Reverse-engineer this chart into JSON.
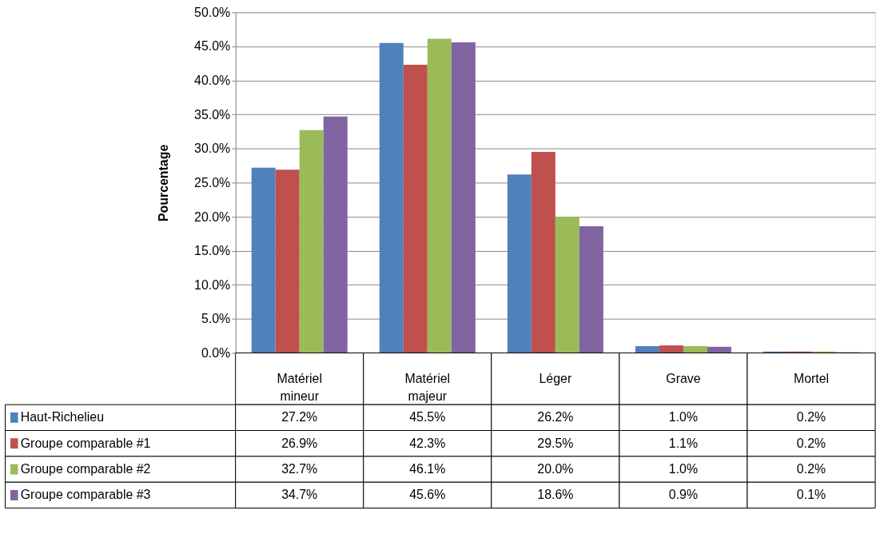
{
  "chart_data": {
    "type": "bar",
    "ylabel": "Pourcentage",
    "categories": [
      "Matériel mineur",
      "Matériel majeur",
      "Léger",
      "Grave",
      "Mortel"
    ],
    "series": [
      {
        "name": "Haut-Richelieu",
        "color": "#4f81bd",
        "values": [
          27.2,
          45.5,
          26.2,
          1.0,
          0.2
        ],
        "value_labels": [
          "27.2%",
          "45.5%",
          "26.2%",
          "1.0%",
          "0.2%"
        ]
      },
      {
        "name": "Groupe comparable #1",
        "color": "#c0504d",
        "values": [
          26.9,
          42.3,
          29.5,
          1.1,
          0.2
        ],
        "value_labels": [
          "26.9%",
          "42.3%",
          "29.5%",
          "1.1%",
          "0.2%"
        ]
      },
      {
        "name": "Groupe comparable #2",
        "color": "#9bbb59",
        "values": [
          32.7,
          46.1,
          20.0,
          1.0,
          0.2
        ],
        "value_labels": [
          "32.7%",
          "46.1%",
          "20.0%",
          "1.0%",
          "0.2%"
        ]
      },
      {
        "name": "Groupe comparable #3",
        "color": "#8064a2",
        "values": [
          34.7,
          45.6,
          18.6,
          0.9,
          0.1
        ],
        "value_labels": [
          "34.7%",
          "45.6%",
          "18.6%",
          "0.9%",
          "0.1%"
        ]
      }
    ],
    "ylim": [
      0,
      50
    ],
    "yticks": [
      {
        "value": 0,
        "label": "0.0%"
      },
      {
        "value": 5,
        "label": "5.0%"
      },
      {
        "value": 10,
        "label": "10.0%"
      },
      {
        "value": 15,
        "label": "15.0%"
      },
      {
        "value": 20,
        "label": "20.0%"
      },
      {
        "value": 25,
        "label": "25.0%"
      },
      {
        "value": 30,
        "label": "30.0%"
      },
      {
        "value": 35,
        "label": "35.0%"
      },
      {
        "value": 40,
        "label": "40.0%"
      },
      {
        "value": 45,
        "label": "45.0%"
      },
      {
        "value": 50,
        "label": "50.0%"
      }
    ],
    "grid": "y",
    "legend": "bottom"
  }
}
